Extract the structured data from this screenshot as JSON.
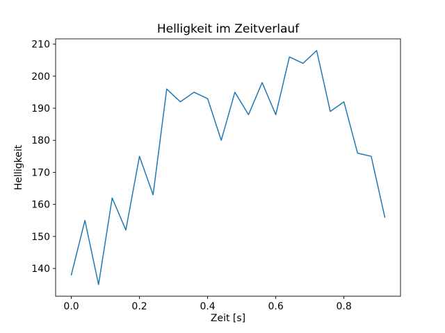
{
  "figure": {
    "background": "#ffffff",
    "text_color": "#000000"
  },
  "chart_data": {
    "type": "line",
    "title": "Helligkeit im Zeitverlauf",
    "xlabel": "Zeit [s]",
    "ylabel": "Helligkeit",
    "x": [
      0.0,
      0.04,
      0.08,
      0.12,
      0.16,
      0.2,
      0.24,
      0.28,
      0.32,
      0.36,
      0.4,
      0.44,
      0.48,
      0.52,
      0.56,
      0.6,
      0.64,
      0.68,
      0.72,
      0.76,
      0.8,
      0.84,
      0.88,
      0.92
    ],
    "y": [
      138,
      155,
      135,
      162,
      152,
      175,
      163,
      196,
      192,
      195,
      193,
      180,
      195,
      188,
      198,
      188,
      206,
      204,
      208,
      189,
      192,
      176,
      175,
      156
    ],
    "line_color": "#1f77b4",
    "line_width": 1.5,
    "xlim": [
      -0.046,
      0.966
    ],
    "ylim": [
      131.35,
      211.65
    ],
    "xticks": [
      0.0,
      0.2,
      0.4,
      0.6,
      0.8
    ],
    "xtick_labels": [
      "0.0",
      "0.2",
      "0.4",
      "0.6",
      "0.8"
    ],
    "yticks": [
      140,
      150,
      160,
      170,
      180,
      190,
      200,
      210
    ],
    "ytick_labels": [
      "140",
      "150",
      "160",
      "170",
      "180",
      "190",
      "200",
      "210"
    ],
    "grid": false,
    "legend_position": "none"
  }
}
